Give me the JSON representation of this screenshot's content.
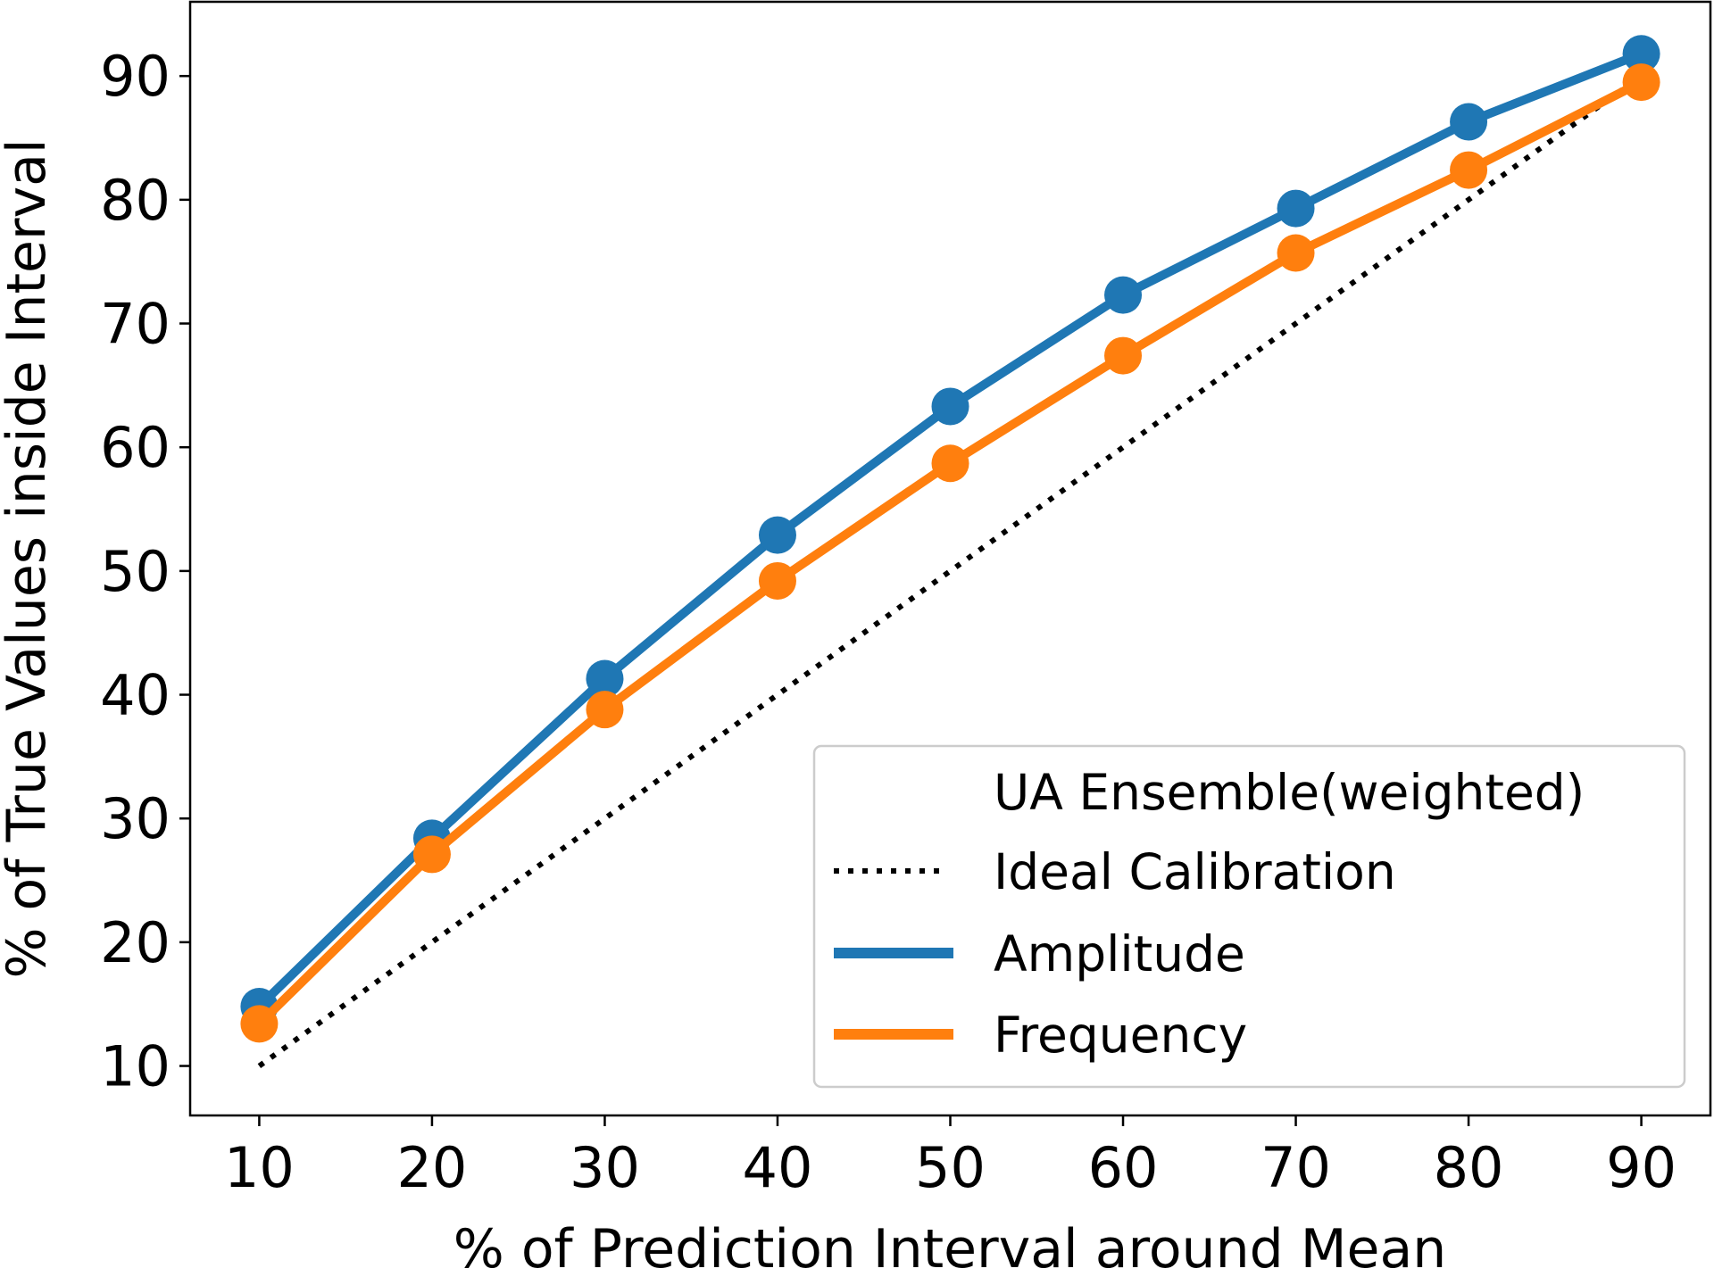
{
  "chart_data": {
    "type": "line",
    "title": "",
    "xlabel": "% of Prediction Interval around Mean",
    "ylabel": "% of True Values inside Interval",
    "xlim": [
      6,
      94
    ],
    "ylim": [
      6,
      96
    ],
    "xticks": [
      10,
      20,
      30,
      40,
      50,
      60,
      70,
      80,
      90
    ],
    "yticks": [
      10,
      20,
      30,
      40,
      50,
      60,
      70,
      80,
      90
    ],
    "grid": false,
    "legend": {
      "placement": "lower-right",
      "title": "UA Ensemble(weighted)",
      "entries": [
        "Ideal Calibration",
        "Amplitude",
        "Frequency"
      ]
    },
    "x": [
      10,
      20,
      30,
      40,
      50,
      60,
      70,
      80,
      90
    ],
    "series": [
      {
        "name": "Ideal Calibration",
        "color": "#000000",
        "style": "dotted",
        "markers": false,
        "values": [
          10,
          20,
          30,
          40,
          50,
          60,
          70,
          80,
          90
        ]
      },
      {
        "name": "Amplitude",
        "color": "#1f77b4",
        "style": "solid",
        "markers": true,
        "values": [
          14.8,
          28.4,
          41.3,
          52.9,
          63.3,
          72.3,
          79.3,
          86.3,
          91.8
        ]
      },
      {
        "name": "Frequency",
        "color": "#ff7f0e",
        "style": "solid",
        "markers": true,
        "values": [
          13.4,
          27.1,
          38.8,
          49.2,
          58.7,
          67.4,
          75.7,
          82.4,
          89.5
        ]
      }
    ]
  }
}
